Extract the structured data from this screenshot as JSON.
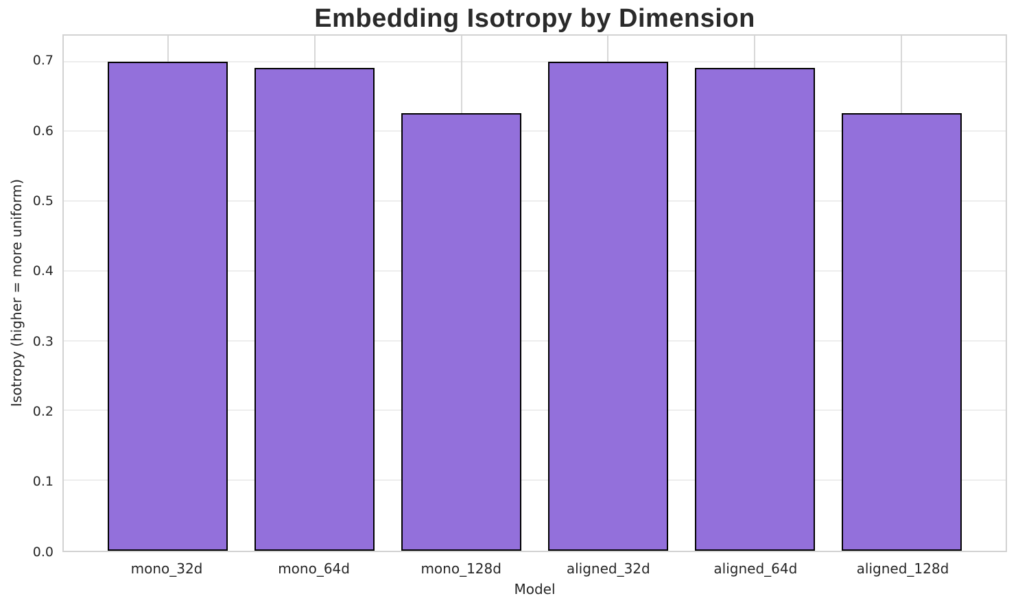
{
  "title": "Embedding Isotropy by Dimension",
  "chart_data": {
    "type": "bar",
    "title": "Embedding Isotropy by Dimension",
    "categories": [
      "mono_32d",
      "mono_64d",
      "mono_128d",
      "aligned_32d",
      "aligned_64d",
      "aligned_128d"
    ],
    "values": [
      0.701,
      0.692,
      0.627,
      0.701,
      0.692,
      0.627
    ],
    "xlabel": "Model",
    "ylabel": "Isotropy (higher = more uniform)",
    "ylim": [
      0,
      0.738
    ],
    "yticks": [
      0.0,
      0.1,
      0.2,
      0.3,
      0.4,
      0.5,
      0.6,
      0.7
    ],
    "grid": true,
    "legend": "none",
    "bar_color": "#9370DB",
    "bar_edge_color": "#000000",
    "grid_color_horizontal": "#ededed",
    "grid_color_vertical": "#d7d7d7",
    "spine_color": "#d2d2d2",
    "text_color": "#262626",
    "title_color": "#2a2a2a",
    "background_color": "#ffffff"
  }
}
